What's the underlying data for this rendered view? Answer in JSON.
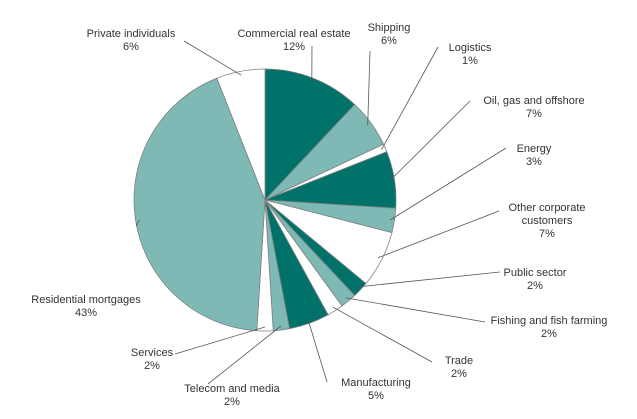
{
  "chart_data": {
    "type": "pie",
    "title": "",
    "start_angle_deg": 0,
    "direction": "clockwise",
    "colors": {
      "dark": "#00726A",
      "light": "#7FB9B6",
      "white": "#FFFFFF",
      "stroke": "#808080",
      "leader": "#555555"
    },
    "slices": [
      {
        "name": "Commercial real estate",
        "value_label": "12%",
        "value": 12,
        "color": "dark"
      },
      {
        "name": "Shipping",
        "value_label": "6%",
        "value": 6,
        "color": "light"
      },
      {
        "name": "Logistics",
        "value_label": "1%",
        "value": 1,
        "color": "white"
      },
      {
        "name": "Oil, gas and offshore",
        "value_label": "7%",
        "value": 7,
        "color": "dark"
      },
      {
        "name": "Energy",
        "value_label": "3%",
        "value": 3,
        "color": "light"
      },
      {
        "name": "Other corporate customers",
        "value_label": "7%",
        "value": 7,
        "color": "white"
      },
      {
        "name": "Public sector",
        "value_label": "2%",
        "value": 2,
        "color": "dark"
      },
      {
        "name": "Fishing and fish farming",
        "value_label": "2%",
        "value": 2,
        "color": "light"
      },
      {
        "name": "Trade",
        "value_label": "2%",
        "value": 2,
        "color": "white"
      },
      {
        "name": "Manufacturing",
        "value_label": "5%",
        "value": 5,
        "color": "dark"
      },
      {
        "name": "Telecom and media",
        "value_label": "2%",
        "value": 2,
        "color": "light"
      },
      {
        "name": "Services",
        "value_label": "2%",
        "value": 2,
        "color": "white"
      },
      {
        "name": "Residential mortgages",
        "value_label": "43%",
        "value": 43,
        "color": "light"
      },
      {
        "name": "Private individuals",
        "value_label": "6%",
        "value": 6,
        "color": "white"
      }
    ]
  }
}
